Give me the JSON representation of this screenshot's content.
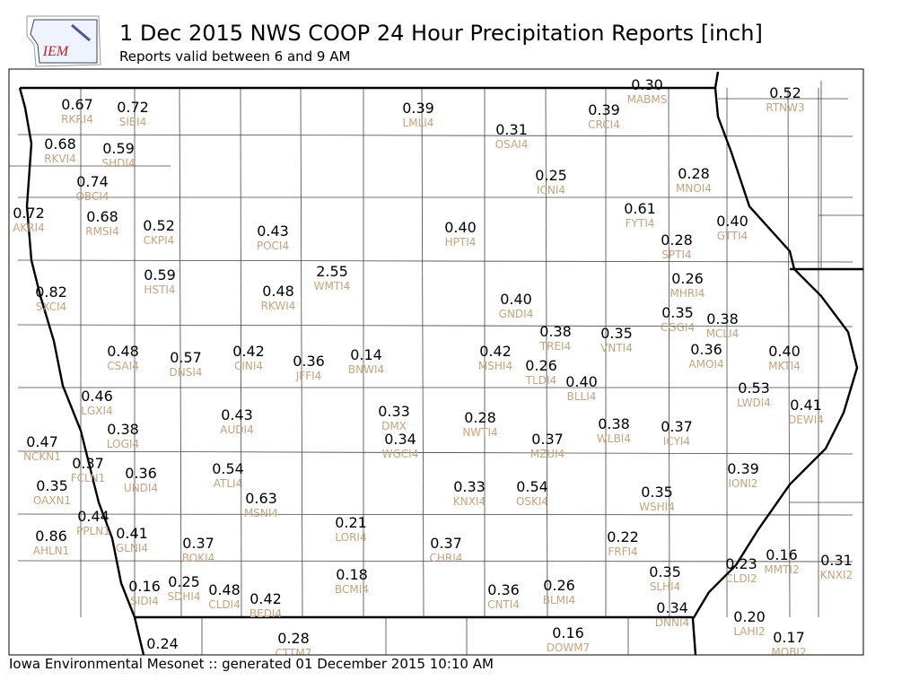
{
  "header": {
    "logo_text": "IEM",
    "title": "1 Dec 2015 NWS COOP 24 Hour Precipitation Reports [inch]",
    "subtitle": "Reports valid between 6 and 9 AM"
  },
  "footer": "Iowa Environmental Mesonet :: generated 01 December 2015 10:10 AM",
  "stations": [
    {
      "value": "0.67",
      "id": "RKRI4"
    },
    {
      "value": "0.72",
      "id": "SIBI4"
    },
    {
      "value": "0.39",
      "id": "LMLI4"
    },
    {
      "value": "0.30",
      "id": "MABMS"
    },
    {
      "value": "0.39",
      "id": "CRCI4"
    },
    {
      "value": "0.52",
      "id": "RTNW3"
    },
    {
      "value": "0.31",
      "id": "OSAI4"
    },
    {
      "value": "0.68",
      "id": "RKVI4"
    },
    {
      "value": "0.59",
      "id": "SHDI4"
    },
    {
      "value": "0.25",
      "id": "ICNI4"
    },
    {
      "value": "0.28",
      "id": "MNOI4"
    },
    {
      "value": "0.74",
      "id": "OBCI4"
    },
    {
      "value": "0.72",
      "id": "AKRI4"
    },
    {
      "value": "0.68",
      "id": "RMSI4"
    },
    {
      "value": "0.52",
      "id": "CKPI4"
    },
    {
      "value": "0.43",
      "id": "POCI4"
    },
    {
      "value": "0.40",
      "id": "HPTI4"
    },
    {
      "value": "0.61",
      "id": "FYTI4"
    },
    {
      "value": "0.40",
      "id": "GTTI4"
    },
    {
      "value": "0.28",
      "id": "SPTI4"
    },
    {
      "value": "2.55",
      "id": "WMTI4"
    },
    {
      "value": "0.59",
      "id": "HSTI4"
    },
    {
      "value": "0.48",
      "id": "RKWI4"
    },
    {
      "value": "0.26",
      "id": "MHRI4"
    },
    {
      "value": "0.82",
      "id": "SXCI4"
    },
    {
      "value": "0.40",
      "id": "GNDI4"
    },
    {
      "value": "0.35",
      "id": "CGGI4"
    },
    {
      "value": "0.38",
      "id": "MCLI4"
    },
    {
      "value": "0.38",
      "id": "TREI4"
    },
    {
      "value": "0.35",
      "id": "VNTI4"
    },
    {
      "value": "0.36",
      "id": "AMOI4"
    },
    {
      "value": "0.40",
      "id": "MKTI4"
    },
    {
      "value": "0.48",
      "id": "CSAI4"
    },
    {
      "value": "0.57",
      "id": "DNSI4"
    },
    {
      "value": "0.42",
      "id": "CINI4"
    },
    {
      "value": "0.36",
      "id": "JFFI4"
    },
    {
      "value": "0.14",
      "id": "BNWI4"
    },
    {
      "value": "0.42",
      "id": "MSHI4"
    },
    {
      "value": "0.26",
      "id": "TLDI4"
    },
    {
      "value": "0.40",
      "id": "BLLI4"
    },
    {
      "value": "0.53",
      "id": "LWDI4"
    },
    {
      "value": "0.41",
      "id": "DEWI4"
    },
    {
      "value": "0.46",
      "id": "LGXI4"
    },
    {
      "value": "0.43",
      "id": "AUDI4"
    },
    {
      "value": "0.33",
      "id": "DMX"
    },
    {
      "value": "0.28",
      "id": "NWTI4"
    },
    {
      "value": "0.38",
      "id": "WLBI4"
    },
    {
      "value": "0.37",
      "id": "ICYI4"
    },
    {
      "value": "0.38",
      "id": "LOGI4"
    },
    {
      "value": "0.34",
      "id": "WGCI4"
    },
    {
      "value": "0.37",
      "id": "MZUI4"
    },
    {
      "value": "0.47",
      "id": "NCKN1"
    },
    {
      "value": "0.37",
      "id": "FCLN1"
    },
    {
      "value": "0.39",
      "id": "IONI2"
    },
    {
      "value": "0.36",
      "id": "UNDI4"
    },
    {
      "value": "0.54",
      "id": "ATLI4"
    },
    {
      "value": "0.35",
      "id": "OAXN1"
    },
    {
      "value": "0.33",
      "id": "KNXI4"
    },
    {
      "value": "0.54",
      "id": "OSKI4"
    },
    {
      "value": "0.35",
      "id": "WSHI4"
    },
    {
      "value": "0.63",
      "id": "MSNI4"
    },
    {
      "value": "0.44",
      "id": "PPLN1"
    },
    {
      "value": "0.21",
      "id": "LORI4"
    },
    {
      "value": "0.86",
      "id": "AHLN1"
    },
    {
      "value": "0.41",
      "id": "GLNI4"
    },
    {
      "value": "0.37",
      "id": "BOKI4"
    },
    {
      "value": "0.37",
      "id": "CHRI4"
    },
    {
      "value": "0.22",
      "id": "FRFI4"
    },
    {
      "value": "0.16",
      "id": "MMTI2"
    },
    {
      "value": "0.31",
      "id": "KNXI2"
    },
    {
      "value": "0.23",
      "id": "CLDI2"
    },
    {
      "value": "0.18",
      "id": "BCMI4"
    },
    {
      "value": "0.35",
      "id": "SLHI4"
    },
    {
      "value": "0.26",
      "id": "BLMI4"
    },
    {
      "value": "0.36",
      "id": "CNTI4"
    },
    {
      "value": "0.16",
      "id": "SIDI4"
    },
    {
      "value": "0.25",
      "id": "SDHI4"
    },
    {
      "value": "0.48",
      "id": "CLDI4"
    },
    {
      "value": "0.42",
      "id": "BEDI4"
    },
    {
      "value": "0.34",
      "id": "DNNI4"
    },
    {
      "value": "0.20",
      "id": "LAHI2"
    },
    {
      "value": "0.17",
      "id": "MOBI2"
    },
    {
      "value": "0.16",
      "id": "DOWM7"
    },
    {
      "value": "0.28",
      "id": "CTTM7"
    },
    {
      "value": "0.24"
    }
  ]
}
